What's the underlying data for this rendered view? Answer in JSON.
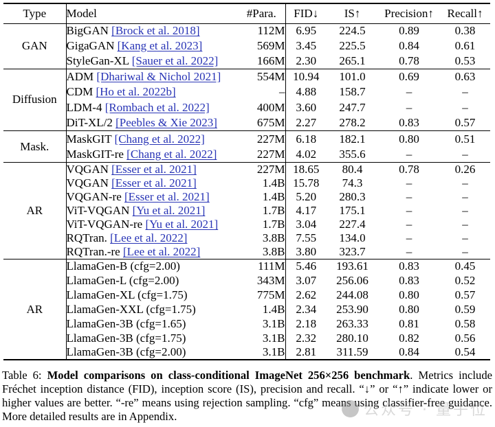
{
  "table": {
    "headers": [
      {
        "key": "type",
        "label": "Type"
      },
      {
        "key": "model",
        "label": "Model"
      },
      {
        "key": "para",
        "label": "#Para."
      },
      {
        "key": "fid",
        "label": "FID↓"
      },
      {
        "key": "is",
        "label": "IS↑"
      },
      {
        "key": "precision",
        "label": "Precision↑"
      },
      {
        "key": "recall",
        "label": "Recall↑"
      }
    ],
    "sections": [
      {
        "type": "GAN",
        "rows": [
          {
            "model": "BigGAN",
            "cite": "[Brock et al. 2018]",
            "para": "112M",
            "fid": "6.95",
            "is": "224.5",
            "precision": "0.89",
            "recall": "0.38"
          },
          {
            "model": "GigaGAN",
            "cite": "[Kang et al. 2023]",
            "para": "569M",
            "fid": "3.45",
            "is": "225.5",
            "precision": "0.84",
            "recall": "0.61"
          },
          {
            "model": "StyleGan-XL",
            "cite": "[Sauer et al. 2022]",
            "para": "166M",
            "fid": "2.30",
            "is": "265.1",
            "precision": "0.78",
            "recall": "0.53"
          }
        ]
      },
      {
        "type": "Diffusion",
        "rows": [
          {
            "model": "ADM",
            "cite": "[Dhariwal & Nichol 2021]",
            "para": "554M",
            "fid": "10.94",
            "is": "101.0",
            "precision": "0.69",
            "recall": "0.63"
          },
          {
            "model": "CDM",
            "cite": "[Ho et al. 2022b]",
            "para": "–",
            "fid": "4.88",
            "is": "158.7",
            "precision": "–",
            "recall": "–"
          },
          {
            "model": "LDM-4",
            "cite": "[Rombach et al. 2022]",
            "para": "400M",
            "fid": "3.60",
            "is": "247.7",
            "precision": "–",
            "recall": "–"
          },
          {
            "model": "DiT-XL/2",
            "cite": "[Peebles & Xie 2023]",
            "para": "675M",
            "fid": "2.27",
            "is": "278.2",
            "precision": "0.83",
            "recall": "0.57"
          }
        ]
      },
      {
        "type": "Mask.",
        "rows": [
          {
            "model": "MaskGIT",
            "cite": "[Chang et al. 2022]",
            "para": "227M",
            "fid": "6.18",
            "is": "182.1",
            "precision": "0.80",
            "recall": "0.51"
          },
          {
            "model": "MaskGIT-re",
            "cite": "[Chang et al. 2022]",
            "para": "227M",
            "fid": "4.02",
            "is": "355.6",
            "precision": "–",
            "recall": "–"
          }
        ]
      },
      {
        "type": "AR",
        "rows": [
          {
            "model": "VQGAN",
            "cite": "[Esser et al. 2021]",
            "para": "227M",
            "fid": "18.65",
            "is": "80.4",
            "precision": "0.78",
            "recall": "0.26"
          },
          {
            "model": "VQGAN",
            "cite": "[Esser et al. 2021]",
            "para": "1.4B",
            "fid": "15.78",
            "is": "74.3",
            "precision": "–",
            "recall": "–"
          },
          {
            "model": "VQGAN-re",
            "cite": "[Esser et al. 2021]",
            "para": "1.4B",
            "fid": "5.20",
            "is": "280.3",
            "precision": "–",
            "recall": "–"
          },
          {
            "model": "ViT-VQGAN",
            "cite": "[Yu et al. 2021]",
            "para": "1.7B",
            "fid": "4.17",
            "is": "175.1",
            "precision": "–",
            "recall": "–"
          },
          {
            "model": "ViT-VQGAN-re",
            "cite": "[Yu et al. 2021]",
            "para": "1.7B",
            "fid": "3.04",
            "is": "227.4",
            "precision": "–",
            "recall": "–"
          },
          {
            "model": "RQTran.",
            "cite": "[Lee et al. 2022]",
            "para": "3.8B",
            "fid": "7.55",
            "is": "134.0",
            "precision": "–",
            "recall": "–"
          },
          {
            "model": "RQTran.-re",
            "cite": "[Lee et al. 2022]",
            "para": "3.8B",
            "fid": "3.80",
            "is": "323.7",
            "precision": "–",
            "recall": "–"
          }
        ]
      },
      {
        "type": "AR",
        "rows": [
          {
            "model": "LlamaGen-B (cfg=2.00)",
            "cite": "",
            "para": "111M",
            "fid": "5.46",
            "is": "193.61",
            "precision": "0.83",
            "recall": "0.45"
          },
          {
            "model": "LlamaGen-L (cfg=2.00)",
            "cite": "",
            "para": "343M",
            "fid": "3.07",
            "is": "256.06",
            "precision": "0.83",
            "recall": "0.52"
          },
          {
            "model": "LlamaGen-XL (cfg=1.75)",
            "cite": "",
            "para": "775M",
            "fid": "2.62",
            "is": "244.08",
            "precision": "0.80",
            "recall": "0.57"
          },
          {
            "model": "LlamaGen-XXL (cfg=1.75)",
            "cite": "",
            "para": "1.4B",
            "fid": "2.34",
            "is": "253.90",
            "precision": "0.80",
            "recall": "0.59"
          },
          {
            "model": "LlamaGen-3B (cfg=1.65)",
            "cite": "",
            "para": "3.1B",
            "fid": "2.18",
            "is": "263.33",
            "precision": "0.81",
            "recall": "0.58"
          },
          {
            "model": "LlamaGen-3B (cfg=1.75)",
            "cite": "",
            "para": "3.1B",
            "fid": "2.32",
            "is": "280.10",
            "precision": "0.82",
            "recall": "0.56"
          },
          {
            "model": "LlamaGen-3B (cfg=2.00)",
            "cite": "",
            "para": "3.1B",
            "fid": "2.81",
            "is": "311.59",
            "precision": "0.84",
            "recall": "0.54"
          }
        ]
      }
    ]
  },
  "caption": {
    "label": "Table 6: ",
    "bold": "Model comparisons on class-conditional ImageNet 256×256 benchmark",
    "rest": ". Metrics include Fréchet inception distance (FID), inception score (IS), precision and recall. “↓” or “↑” indicate lower or higher values are better. “-re” means using rejection sampling. “cfg” means using classifier-free guidance. More detailed results are in Appendix."
  },
  "watermark": {
    "text": "公众号 · 量子位"
  },
  "colors": {
    "link_blue": "#2733b5",
    "rule_black": "#000000",
    "watermark_gray": "#b5b5b5"
  }
}
